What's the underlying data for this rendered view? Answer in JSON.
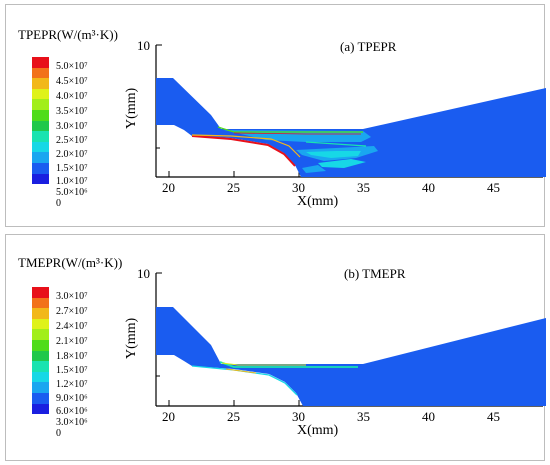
{
  "panels": [
    {
      "legend_title": "TPEPR(W/(m³·K))",
      "plot_title": "(a) TPEPR",
      "xlabel": "X(mm)",
      "ylabel": "Y(mm)",
      "x_ticks": [
        "20",
        "25",
        "30",
        "35",
        "40",
        "45"
      ],
      "y_tick": "10",
      "levels": [
        "5.0×10⁷",
        "4.5×10⁷",
        "4.0×10⁷",
        "3.5×10⁷",
        "3.0×10⁷",
        "2.5×10⁷",
        "2.0×10⁷",
        "1.5×10⁷",
        "1.0×10⁷",
        "5.0×10⁶",
        "0"
      ]
    },
    {
      "legend_title": "TMEPR(W/(m³·K))",
      "plot_title": "(b) TMEPR",
      "xlabel": "X(mm)",
      "ylabel": "Y(mm)",
      "x_ticks": [
        "20",
        "25",
        "30",
        "35",
        "40",
        "45"
      ],
      "y_tick": "10",
      "levels": [
        "3.0×10⁷",
        "2.7×10⁷",
        "2.4×10⁷",
        "2.1×10⁷",
        "1.8×10⁷",
        "1.5×10⁷",
        "1.2×10⁷",
        "9.0×10⁶",
        "6.0×10⁶",
        "3.0×10⁶",
        "0"
      ]
    }
  ],
  "colormap": [
    "#e8101a",
    "#f2721a",
    "#f2b81a",
    "#dff21a",
    "#a2ee1a",
    "#4fdc1a",
    "#20c84a",
    "#19e3b0",
    "#17d8e6",
    "#1aa6f0",
    "#1a5cf0",
    "#1a1fe0"
  ]
}
